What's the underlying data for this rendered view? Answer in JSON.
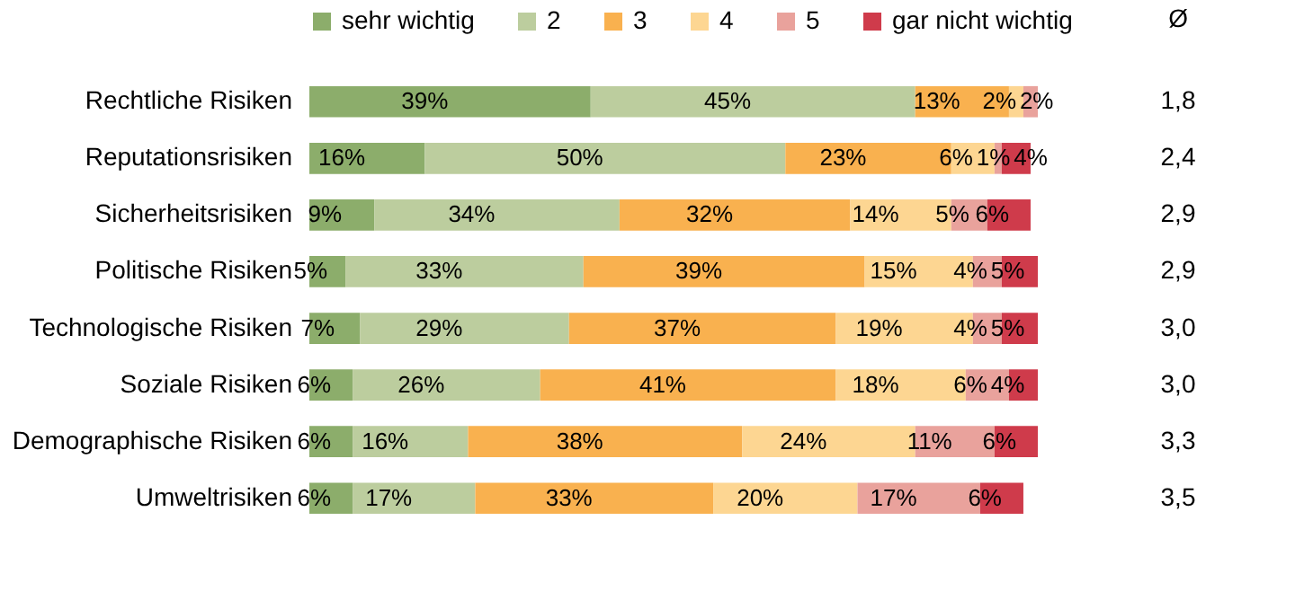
{
  "chart_data": {
    "type": "bar",
    "orientation": "horizontal",
    "stacked": true,
    "categories": [
      "Rechtliche Risiken",
      "Reputationsrisiken",
      "Sicherheitsrisiken",
      "Politische Risiken",
      "Technologische Risiken",
      "Soziale Risiken",
      "Demographische Risiken",
      "Umweltrisiken"
    ],
    "xlim": [
      0,
      101
    ],
    "tick_labels": "y",
    "legend": "top",
    "series": [
      {
        "name": "sehr wichtig",
        "color": "#8cad6b",
        "values": [
          39,
          16,
          9,
          5,
          7,
          6,
          6,
          6
        ],
        "value_labels": [
          "39%",
          "16%",
          "9%",
          "5%",
          "7%",
          "6%",
          "6%",
          "6%"
        ]
      },
      {
        "name": "2",
        "color": "#bccd9e",
        "values": [
          45,
          50,
          34,
          33,
          29,
          26,
          16,
          17
        ],
        "value_labels": [
          "45%",
          "50%",
          "34%",
          "33%",
          "29%",
          "26%",
          "16%",
          "17%"
        ]
      },
      {
        "name": "3",
        "color": "#f9b14f",
        "values": [
          13,
          23,
          32,
          39,
          37,
          41,
          38,
          33
        ],
        "value_labels": [
          "13%",
          "23%",
          "32%",
          "39%",
          "37%",
          "41%",
          "38%",
          "33%"
        ]
      },
      {
        "name": "4",
        "color": "#fdd692",
        "values": [
          2,
          6,
          14,
          15,
          19,
          18,
          24,
          20
        ],
        "value_labels": [
          "2%",
          "6%",
          "14%",
          "15%",
          "19%",
          "18%",
          "24%",
          "20%"
        ]
      },
      {
        "name": "5",
        "color": "#e9a29c",
        "values": [
          2,
          1,
          5,
          4,
          4,
          6,
          11,
          17
        ],
        "value_labels": [
          "2%",
          "1%",
          "5%",
          "4%",
          "4%",
          "6%",
          "11%",
          "17%"
        ]
      },
      {
        "name": "gar nicht wichtig",
        "color": "#cf3b4b",
        "values": [
          null,
          4,
          6,
          5,
          5,
          4,
          6,
          6
        ],
        "value_labels": [
          null,
          "4%",
          "6%",
          "5%",
          "5%",
          "4%",
          "6%",
          "6%"
        ]
      }
    ],
    "annotations": [
      "Ø",
      "1,8",
      "2,4",
      "2,9",
      "2,9",
      "3,0",
      "3,0",
      "3,3",
      "3,5"
    ]
  }
}
